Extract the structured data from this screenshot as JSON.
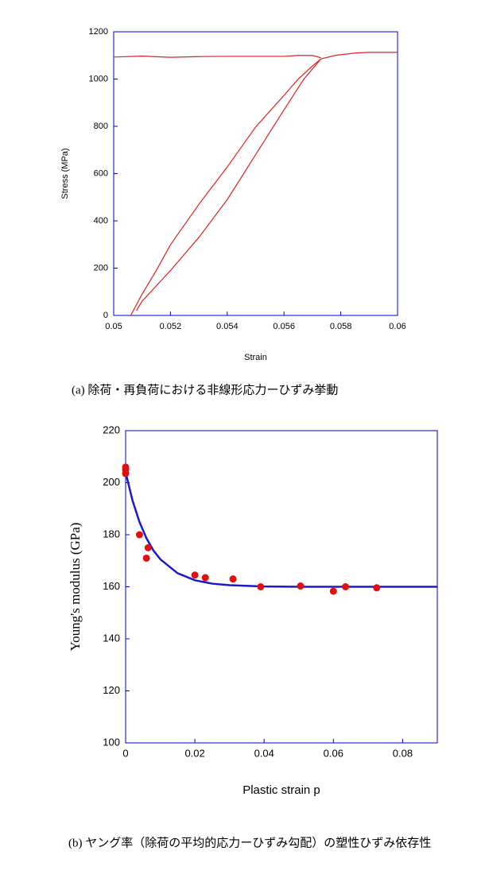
{
  "chart_data": [
    {
      "type": "line",
      "caption": "(a) 除荷・再負荷における非線形応力ーひずみ挙動",
      "xlabel": "Strain",
      "ylabel": "Stress (MPa)",
      "xlim": [
        0.05,
        0.06
      ],
      "xticks": [
        0.05,
        0.052,
        0.054,
        0.056,
        0.058,
        0.06
      ],
      "ylim": [
        0,
        1200
      ],
      "yticks": [
        0,
        200,
        400,
        600,
        800,
        1000,
        1200
      ],
      "frame_color": "#0000cc",
      "series": [
        {
          "type": "line",
          "color": "#dd2222",
          "x": [
            0.05,
            0.051,
            0.052,
            0.053,
            0.054,
            0.055,
            0.056,
            0.0565,
            0.057,
            0.0573
          ],
          "values": [
            1093,
            1097,
            1092,
            1095,
            1096,
            1096,
            1096,
            1100,
            1100,
            1090
          ]
        },
        {
          "type": "line",
          "color": "#dd2222",
          "x": [
            0.0573,
            0.0578,
            0.0585,
            0.059,
            0.06
          ],
          "values": [
            1085,
            1100,
            1110,
            1113,
            1113
          ]
        },
        {
          "type": "line",
          "color": "#dd2222",
          "x": [
            0.0506,
            0.051,
            0.0515,
            0.052,
            0.053,
            0.054,
            0.055,
            0.056,
            0.0565,
            0.057,
            0.0573
          ],
          "values": [
            0,
            90,
            190,
            299,
            470,
            628,
            797,
            931,
            1000,
            1055,
            1085
          ]
        },
        {
          "type": "line",
          "color": "#dd2222",
          "x": [
            0.0508,
            0.051,
            0.052,
            0.053,
            0.054,
            0.055,
            0.056,
            0.0567,
            0.0573
          ],
          "values": [
            20,
            60,
            190,
            330,
            490,
            680,
            870,
            1000,
            1085
          ]
        }
      ]
    },
    {
      "type": "scatter",
      "caption": "(b) ヤング率（除荷の平均的応力ーひずみ勾配）の塑性ひずみ依存性",
      "xlabel": "Plastic strain p",
      "ylabel": "Young's modulus (GPa)",
      "xlim": [
        0,
        0.09
      ],
      "xticks": [
        0,
        0.02,
        0.04,
        0.06,
        0.08
      ],
      "ylim": [
        100,
        220
      ],
      "yticks": [
        100,
        120,
        140,
        160,
        180,
        200,
        220
      ],
      "frame_color": "#0000cc",
      "series": [
        {
          "type": "line",
          "color": "#1a1acc",
          "x": [
            0,
            0.002,
            0.004,
            0.006,
            0.008,
            0.01,
            0.015,
            0.02,
            0.025,
            0.03,
            0.04,
            0.05,
            0.09
          ],
          "values": [
            204,
            193.1,
            184.9,
            178.7,
            174,
            170.6,
            165.2,
            162.5,
            161.2,
            160.6,
            160.1,
            160,
            160
          ]
        },
        {
          "type": "scatter",
          "color": "#e01010",
          "x": [
            0,
            0,
            0,
            0.004,
            0.0065,
            0.006,
            0.02,
            0.023,
            0.031,
            0.039,
            0.0505,
            0.06,
            0.0635,
            0.0725
          ],
          "values": [
            206,
            205,
            203.5,
            180,
            175,
            171,
            164.5,
            163.5,
            163,
            160,
            160.3,
            158.3,
            160,
            159.6
          ]
        }
      ]
    }
  ]
}
